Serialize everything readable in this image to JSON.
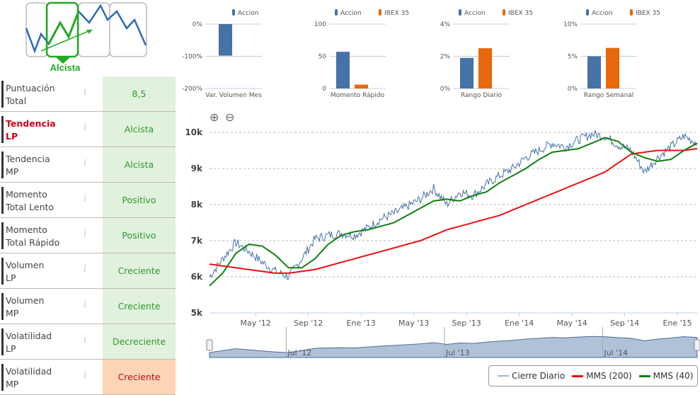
{
  "trend_widget": {
    "label": "Alcista"
  },
  "indicators": [
    {
      "label1": "Puntuación",
      "label2": "Total",
      "value": "8,5",
      "status": "positive",
      "highlight": false
    },
    {
      "label1": "Tendencia",
      "label2": "LP",
      "value": "Alcista",
      "status": "positive",
      "highlight": true
    },
    {
      "label1": "Tendencia",
      "label2": "MP",
      "value": "Alcista",
      "status": "positive",
      "highlight": false
    },
    {
      "label1": "Momento",
      "label2": "Total Lento",
      "value": "Positivo",
      "status": "positive",
      "highlight": false
    },
    {
      "label1": "Momento",
      "label2": "Total Rápido",
      "value": "Positivo",
      "status": "positive",
      "highlight": false
    },
    {
      "label1": "Volumen",
      "label2": "LP",
      "value": "Creciente",
      "status": "positive",
      "highlight": false
    },
    {
      "label1": "Volumen",
      "label2": "MP",
      "value": "Creciente",
      "status": "positive",
      "highlight": false
    },
    {
      "label1": "Volatilidad",
      "label2": "LP",
      "value": "Decreciente",
      "status": "positive",
      "highlight": false
    },
    {
      "label1": "Volatilidad",
      "label2": "MP",
      "value": "Creciente",
      "status": "negative",
      "highlight": false
    }
  ],
  "colors": {
    "accion": "#4572a7",
    "ibex": "#e8680c",
    "close": "#4572a7",
    "mms200": "#ee1111",
    "mms40": "#108010",
    "positive_bg": "#e2f0de",
    "negative_bg": "#fcd5b5"
  },
  "chart_data": [
    {
      "type": "bar",
      "xlabel": "Var. Volumen Mes",
      "yticks": [
        "0%",
        "-100%",
        "-200%"
      ],
      "ylim": [
        -200,
        0
      ],
      "series": [
        {
          "name": "Accion",
          "values": [
            -98
          ]
        }
      ]
    },
    {
      "type": "bar",
      "xlabel": "Momento Rápido",
      "yticks": [
        "100",
        "50",
        "0"
      ],
      "ylim": [
        0,
        100
      ],
      "series": [
        {
          "name": "Accion",
          "values": [
            57
          ]
        },
        {
          "name": "IBEX 35",
          "values": [
            6
          ]
        }
      ]
    },
    {
      "type": "bar",
      "xlabel": "Rango Diario",
      "yticks": [
        "4%",
        "2%",
        "0%"
      ],
      "ylim": [
        0,
        4
      ],
      "series": [
        {
          "name": "Accion",
          "values": [
            1.9
          ]
        },
        {
          "name": "IBEX 35",
          "values": [
            2.5
          ]
        }
      ]
    },
    {
      "type": "bar",
      "xlabel": "Rango Semanal",
      "yticks": [
        "10%",
        "5%",
        "0%"
      ],
      "ylim": [
        0,
        10
      ],
      "series": [
        {
          "name": "Accion",
          "values": [
            5.0
          ]
        },
        {
          "name": "IBEX 35",
          "values": [
            6.3
          ]
        }
      ]
    },
    {
      "type": "line",
      "ylim": [
        5000,
        10000
      ],
      "yticks": [
        "10k",
        "9k",
        "8k",
        "7k",
        "6k",
        "5k"
      ],
      "xticks": [
        "May '12",
        "Sep '12",
        "Ene '13",
        "May '13",
        "Sep '13",
        "Ene '14",
        "May '14",
        "Sep '14",
        "Ene '15"
      ],
      "navigator_ticks": [
        "Jul '12",
        "Jul '13",
        "Jul '14"
      ],
      "x": [
        "2012-01",
        "2012-02",
        "2012-03",
        "2012-04",
        "2012-05",
        "2012-06",
        "2012-07",
        "2012-08",
        "2012-09",
        "2012-10",
        "2012-11",
        "2012-12",
        "2013-01",
        "2013-02",
        "2013-03",
        "2013-04",
        "2013-05",
        "2013-06",
        "2013-07",
        "2013-08",
        "2013-09",
        "2013-10",
        "2013-11",
        "2013-12",
        "2014-01",
        "2014-02",
        "2014-03",
        "2014-04",
        "2014-05",
        "2014-06",
        "2014-07",
        "2014-08",
        "2014-09",
        "2014-10",
        "2014-11",
        "2014-12",
        "2015-01",
        "2015-02"
      ],
      "series": [
        {
          "name": "Cierre Diario",
          "values": [
            6000,
            6500,
            6950,
            6700,
            6400,
            6150,
            6000,
            6500,
            7050,
            7150,
            7200,
            7150,
            7350,
            7600,
            7750,
            7950,
            8150,
            8450,
            8000,
            8350,
            8250,
            8550,
            8800,
            9000,
            9300,
            9500,
            9700,
            9600,
            9800,
            9950,
            9900,
            9650,
            9500,
            8900,
            9300,
            9600,
            9900,
            9700
          ]
        },
        {
          "name": "MMS (200)",
          "values": [
            6350,
            6300,
            6250,
            6200,
            6150,
            6100,
            6100,
            6150,
            6200,
            6300,
            6400,
            6500,
            6600,
            6700,
            6800,
            6900,
            7000,
            7150,
            7300,
            7400,
            7500,
            7600,
            7700,
            7850,
            8000,
            8150,
            8300,
            8450,
            8600,
            8750,
            8900,
            9150,
            9400,
            9450,
            9500,
            9500,
            9500,
            9550
          ]
        },
        {
          "name": "MMS (40)",
          "values": [
            5750,
            6100,
            6650,
            6900,
            6850,
            6600,
            6250,
            6250,
            6500,
            6900,
            7150,
            7250,
            7300,
            7400,
            7500,
            7700,
            7900,
            8100,
            8150,
            8100,
            8250,
            8350,
            8600,
            8800,
            9000,
            9250,
            9450,
            9500,
            9550,
            9700,
            9850,
            9750,
            9450,
            9300,
            9200,
            9250,
            9500,
            9700
          ]
        }
      ]
    }
  ],
  "legend": {
    "close": "Cierre Diario",
    "mms200": "MMS (200)",
    "mms40": "MMS (40)"
  },
  "legend_top": {
    "accion": "Accion",
    "ibex": "IBEX 35"
  }
}
